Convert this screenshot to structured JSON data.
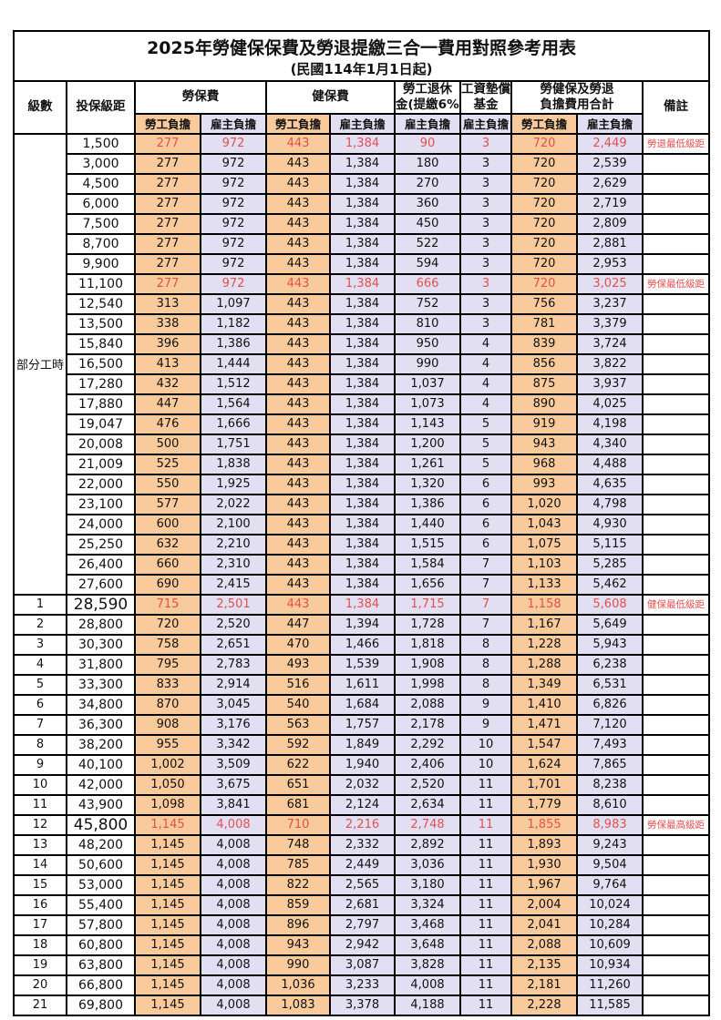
{
  "table": {
    "title": "2025年勞健保保費及勞退提繳三合一費用對照參考用表",
    "subtitle": "(民國114年1月1日起)",
    "colors": {
      "employee_bg": "#F9CB9C",
      "employer_bg": "#E2DFF2",
      "highlight_red": "#E34F4F",
      "border": "#000000"
    },
    "header": {
      "level": "級數",
      "bracket": "投保級距",
      "labor": "勞保費",
      "health": "健保費",
      "pension_line1": "勞工退休",
      "pension_line2": "金(提繳6%)",
      "wage_line1": "工資墊償",
      "wage_line2": "基金",
      "total_line1": "勞健保及勞退",
      "total_line2": "負擔費用合計",
      "remark": "備註",
      "employee": "勞工負擔",
      "employer": "雇主負擔"
    },
    "part_time_label": "部分工時",
    "part_time_rowspan": 23,
    "rows": [
      {
        "level": "",
        "bracket": "1,500",
        "cells": [
          "277",
          "972",
          "443",
          "1,384",
          "90",
          "3",
          "720",
          "2,449"
        ],
        "remark": "勞退最低級距",
        "highlight": true
      },
      {
        "level": "",
        "bracket": "3,000",
        "cells": [
          "277",
          "972",
          "443",
          "1,384",
          "180",
          "3",
          "720",
          "2,539"
        ],
        "remark": ""
      },
      {
        "level": "",
        "bracket": "4,500",
        "cells": [
          "277",
          "972",
          "443",
          "1,384",
          "270",
          "3",
          "720",
          "2,629"
        ],
        "remark": ""
      },
      {
        "level": "",
        "bracket": "6,000",
        "cells": [
          "277",
          "972",
          "443",
          "1,384",
          "360",
          "3",
          "720",
          "2,719"
        ],
        "remark": ""
      },
      {
        "level": "",
        "bracket": "7,500",
        "cells": [
          "277",
          "972",
          "443",
          "1,384",
          "450",
          "3",
          "720",
          "2,809"
        ],
        "remark": ""
      },
      {
        "level": "",
        "bracket": "8,700",
        "cells": [
          "277",
          "972",
          "443",
          "1,384",
          "522",
          "3",
          "720",
          "2,881"
        ],
        "remark": ""
      },
      {
        "level": "",
        "bracket": "9,900",
        "cells": [
          "277",
          "972",
          "443",
          "1,384",
          "594",
          "3",
          "720",
          "2,953"
        ],
        "remark": ""
      },
      {
        "level": "",
        "bracket": "11,100",
        "cells": [
          "277",
          "972",
          "443",
          "1,384",
          "666",
          "3",
          "720",
          "3,025"
        ],
        "remark": "勞保最低級距",
        "highlight": true
      },
      {
        "level": "",
        "bracket": "12,540",
        "cells": [
          "313",
          "1,097",
          "443",
          "1,384",
          "752",
          "3",
          "756",
          "3,237"
        ],
        "remark": ""
      },
      {
        "level": "",
        "bracket": "13,500",
        "cells": [
          "338",
          "1,182",
          "443",
          "1,384",
          "810",
          "3",
          "781",
          "3,379"
        ],
        "remark": ""
      },
      {
        "level": "",
        "bracket": "15,840",
        "cells": [
          "396",
          "1,386",
          "443",
          "1,384",
          "950",
          "4",
          "839",
          "3,724"
        ],
        "remark": ""
      },
      {
        "level": "",
        "bracket": "16,500",
        "cells": [
          "413",
          "1,444",
          "443",
          "1,384",
          "990",
          "4",
          "856",
          "3,822"
        ],
        "remark": ""
      },
      {
        "level": "",
        "bracket": "17,280",
        "cells": [
          "432",
          "1,512",
          "443",
          "1,384",
          "1,037",
          "4",
          "875",
          "3,937"
        ],
        "remark": ""
      },
      {
        "level": "",
        "bracket": "17,880",
        "cells": [
          "447",
          "1,564",
          "443",
          "1,384",
          "1,073",
          "4",
          "890",
          "4,025"
        ],
        "remark": ""
      },
      {
        "level": "",
        "bracket": "19,047",
        "cells": [
          "476",
          "1,666",
          "443",
          "1,384",
          "1,143",
          "5",
          "919",
          "4,198"
        ],
        "remark": ""
      },
      {
        "level": "",
        "bracket": "20,008",
        "cells": [
          "500",
          "1,751",
          "443",
          "1,384",
          "1,200",
          "5",
          "943",
          "4,340"
        ],
        "remark": ""
      },
      {
        "level": "",
        "bracket": "21,009",
        "cells": [
          "525",
          "1,838",
          "443",
          "1,384",
          "1,261",
          "5",
          "968",
          "4,488"
        ],
        "remark": ""
      },
      {
        "level": "",
        "bracket": "22,000",
        "cells": [
          "550",
          "1,925",
          "443",
          "1,384",
          "1,320",
          "6",
          "993",
          "4,635"
        ],
        "remark": ""
      },
      {
        "level": "",
        "bracket": "23,100",
        "cells": [
          "577",
          "2,022",
          "443",
          "1,384",
          "1,386",
          "6",
          "1,020",
          "4,798"
        ],
        "remark": ""
      },
      {
        "level": "",
        "bracket": "24,000",
        "cells": [
          "600",
          "2,100",
          "443",
          "1,384",
          "1,440",
          "6",
          "1,043",
          "4,930"
        ],
        "remark": ""
      },
      {
        "level": "",
        "bracket": "25,250",
        "cells": [
          "632",
          "2,210",
          "443",
          "1,384",
          "1,515",
          "6",
          "1,075",
          "5,115"
        ],
        "remark": ""
      },
      {
        "level": "",
        "bracket": "26,400",
        "cells": [
          "660",
          "2,310",
          "443",
          "1,384",
          "1,584",
          "7",
          "1,103",
          "5,285"
        ],
        "remark": ""
      },
      {
        "level": "",
        "bracket": "27,600",
        "cells": [
          "690",
          "2,415",
          "443",
          "1,384",
          "1,656",
          "7",
          "1,133",
          "5,462"
        ],
        "remark": ""
      },
      {
        "level": "1",
        "bracket": "28,590",
        "cells": [
          "715",
          "2,501",
          "443",
          "1,384",
          "1,715",
          "7",
          "1,158",
          "5,608"
        ],
        "remark": "健保最低級距",
        "highlight": true,
        "big": true
      },
      {
        "level": "2",
        "bracket": "28,800",
        "cells": [
          "720",
          "2,520",
          "447",
          "1,394",
          "1,728",
          "7",
          "1,167",
          "5,649"
        ],
        "remark": ""
      },
      {
        "level": "3",
        "bracket": "30,300",
        "cells": [
          "758",
          "2,651",
          "470",
          "1,466",
          "1,818",
          "8",
          "1,228",
          "5,943"
        ],
        "remark": ""
      },
      {
        "level": "4",
        "bracket": "31,800",
        "cells": [
          "795",
          "2,783",
          "493",
          "1,539",
          "1,908",
          "8",
          "1,288",
          "6,238"
        ],
        "remark": ""
      },
      {
        "level": "5",
        "bracket": "33,300",
        "cells": [
          "833",
          "2,914",
          "516",
          "1,611",
          "1,998",
          "8",
          "1,349",
          "6,531"
        ],
        "remark": ""
      },
      {
        "level": "6",
        "bracket": "34,800",
        "cells": [
          "870",
          "3,045",
          "540",
          "1,684",
          "2,088",
          "9",
          "1,410",
          "6,826"
        ],
        "remark": ""
      },
      {
        "level": "7",
        "bracket": "36,300",
        "cells": [
          "908",
          "3,176",
          "563",
          "1,757",
          "2,178",
          "9",
          "1,471",
          "7,120"
        ],
        "remark": ""
      },
      {
        "level": "8",
        "bracket": "38,200",
        "cells": [
          "955",
          "3,342",
          "592",
          "1,849",
          "2,292",
          "10",
          "1,547",
          "7,493"
        ],
        "remark": ""
      },
      {
        "level": "9",
        "bracket": "40,100",
        "cells": [
          "1,002",
          "3,509",
          "622",
          "1,940",
          "2,406",
          "10",
          "1,624",
          "7,865"
        ],
        "remark": ""
      },
      {
        "level": "10",
        "bracket": "42,000",
        "cells": [
          "1,050",
          "3,675",
          "651",
          "2,032",
          "2,520",
          "11",
          "1,701",
          "8,238"
        ],
        "remark": ""
      },
      {
        "level": "11",
        "bracket": "43,900",
        "cells": [
          "1,098",
          "3,841",
          "681",
          "2,124",
          "2,634",
          "11",
          "1,779",
          "8,610"
        ],
        "remark": ""
      },
      {
        "level": "12",
        "bracket": "45,800",
        "cells": [
          "1,145",
          "4,008",
          "710",
          "2,216",
          "2,748",
          "11",
          "1,855",
          "8,983"
        ],
        "remark": "勞保最高級距",
        "highlight": true,
        "big": true
      },
      {
        "level": "13",
        "bracket": "48,200",
        "cells": [
          "1,145",
          "4,008",
          "748",
          "2,332",
          "2,892",
          "11",
          "1,893",
          "9,243"
        ],
        "remark": ""
      },
      {
        "level": "14",
        "bracket": "50,600",
        "cells": [
          "1,145",
          "4,008",
          "785",
          "2,449",
          "3,036",
          "11",
          "1,930",
          "9,504"
        ],
        "remark": ""
      },
      {
        "level": "15",
        "bracket": "53,000",
        "cells": [
          "1,145",
          "4,008",
          "822",
          "2,565",
          "3,180",
          "11",
          "1,967",
          "9,764"
        ],
        "remark": ""
      },
      {
        "level": "16",
        "bracket": "55,400",
        "cells": [
          "1,145",
          "4,008",
          "859",
          "2,681",
          "3,324",
          "11",
          "2,004",
          "10,024"
        ],
        "remark": ""
      },
      {
        "level": "17",
        "bracket": "57,800",
        "cells": [
          "1,145",
          "4,008",
          "896",
          "2,797",
          "3,468",
          "11",
          "2,041",
          "10,284"
        ],
        "remark": ""
      },
      {
        "level": "18",
        "bracket": "60,800",
        "cells": [
          "1,145",
          "4,008",
          "943",
          "2,942",
          "3,648",
          "11",
          "2,088",
          "10,609"
        ],
        "remark": ""
      },
      {
        "level": "19",
        "bracket": "63,800",
        "cells": [
          "1,145",
          "4,008",
          "990",
          "3,087",
          "3,828",
          "11",
          "2,135",
          "10,934"
        ],
        "remark": ""
      },
      {
        "level": "20",
        "bracket": "66,800",
        "cells": [
          "1,145",
          "4,008",
          "1,036",
          "3,233",
          "4,008",
          "11",
          "2,181",
          "11,260"
        ],
        "remark": ""
      },
      {
        "level": "21",
        "bracket": "69,800",
        "cells": [
          "1,145",
          "4,008",
          "1,083",
          "3,378",
          "4,188",
          "11",
          "2,228",
          "11,585"
        ],
        "remark": ""
      }
    ]
  }
}
